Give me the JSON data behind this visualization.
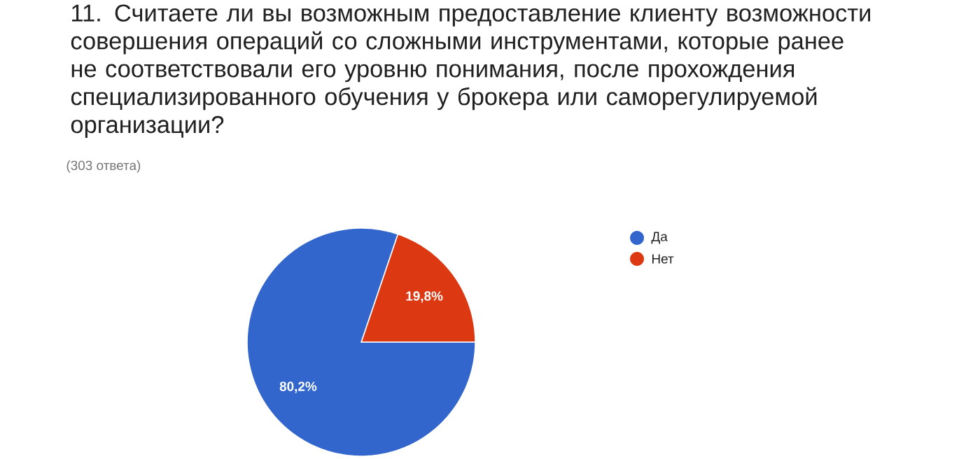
{
  "chart_data": {
    "type": "pie",
    "title": "11. Считаете ли вы возможным предоставление клиенту возможности совершения операций со сложными инструментами, которые ранее не соответствовали его уровню понимания, после прохождения специализированного обучения у брокера или саморегулируемой организации?",
    "subtitle": "(303 ответа)",
    "categories": [
      "Да",
      "Нет"
    ],
    "values": [
      80.2,
      19.8
    ],
    "value_labels": [
      "80,2%",
      "19,8%"
    ],
    "colors": [
      "#3366cc",
      "#dc3912"
    ],
    "legend": "right"
  }
}
